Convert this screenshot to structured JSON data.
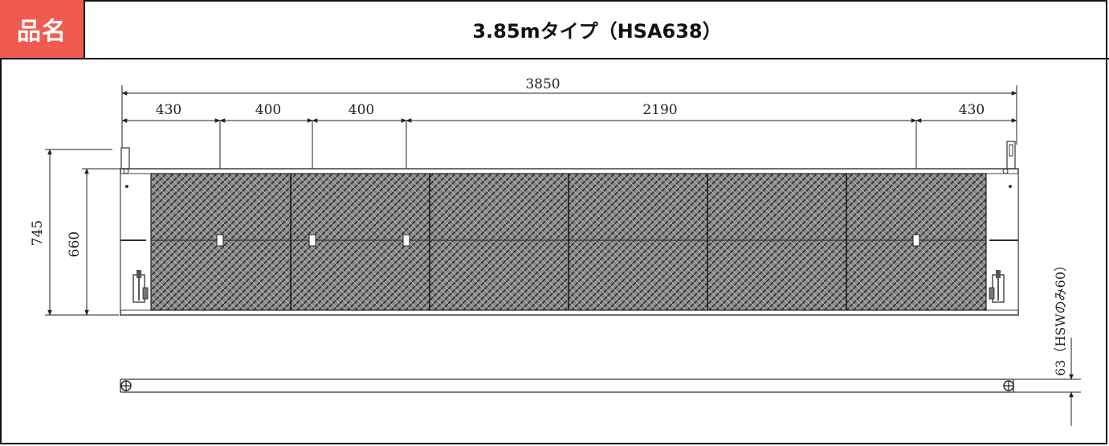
{
  "header": {
    "label": "品名",
    "title": "3.85mタイプ（HSA638）",
    "label_bg": "#f15a4f"
  },
  "dimensions": {
    "overall_length": "3850",
    "segments": [
      "430",
      "400",
      "400",
      "2190",
      "430"
    ],
    "height_outer": "745",
    "height_inner": "660",
    "side_note": "63（HSWのみ60）"
  },
  "colors": {
    "line": "#222222",
    "mesh": "#6e6e6e",
    "frame": "#444444"
  }
}
